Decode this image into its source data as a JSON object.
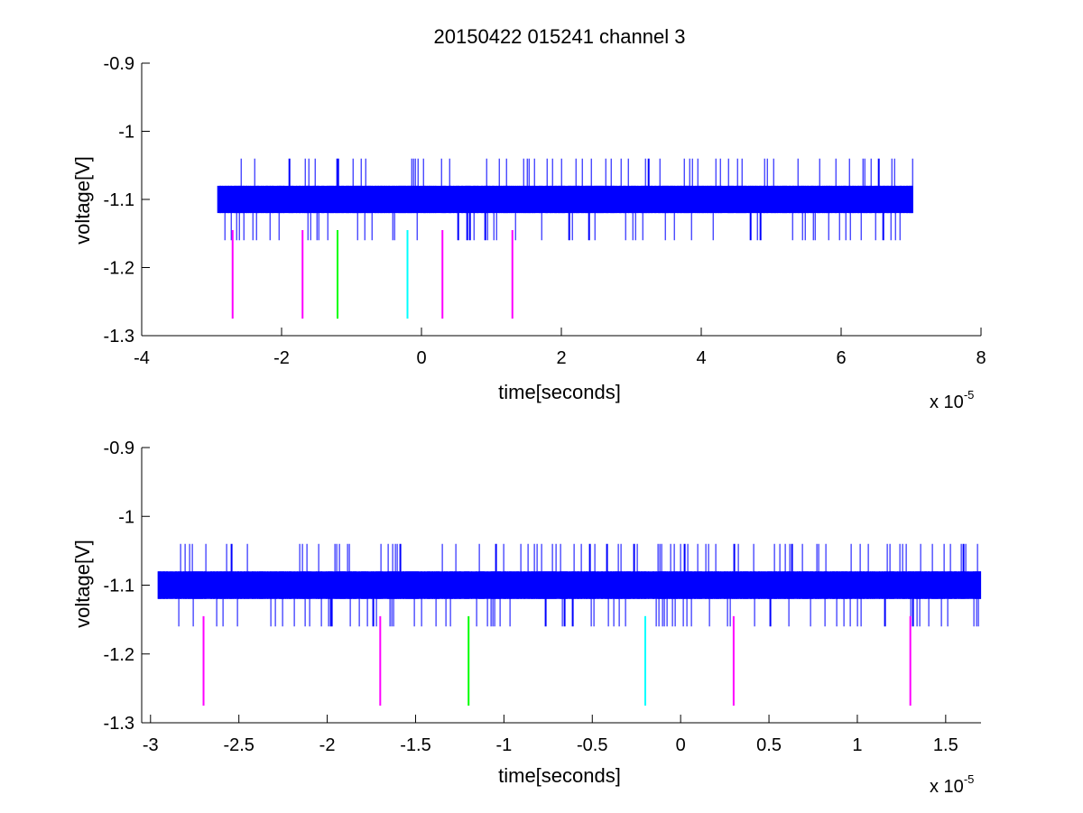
{
  "figure_title": "20150422 015241 channel 3",
  "colors": {
    "signal": "#0000ff",
    "magenta": "#ff00ff",
    "green": "#00ff00",
    "cyan": "#00ffff",
    "axis": "#000000",
    "background": "#ffffff"
  },
  "chart_data": [
    {
      "type": "line",
      "title": "20150422 015241 channel 3",
      "xlabel": "time[seconds]",
      "ylabel": "voltage[V]",
      "x_scale_label": "x 10",
      "x_scale_exponent": "-5",
      "xlim": [
        -4,
        8
      ],
      "ylim": [
        -1.3,
        -0.9
      ],
      "x_ticks": [
        -4,
        -2,
        0,
        2,
        4,
        6,
        8
      ],
      "x_tick_labels": [
        "-4",
        "-2",
        "0",
        "2",
        "4",
        "6",
        "8"
      ],
      "y_ticks": [
        -0.9,
        -1.0,
        -1.1,
        -1.2,
        -1.3
      ],
      "y_tick_labels": [
        "-0.9",
        "-1",
        "-1.1",
        "-1.2",
        "-1.3"
      ],
      "grid": false,
      "signal": {
        "x_range": [
          -2.92,
          7.03
        ],
        "band_low": -1.12,
        "band_high": -1.08,
        "spike_high": -1.04,
        "spike_low": -1.16,
        "color": "#0000ff"
      },
      "markers": [
        {
          "x": -2.7,
          "y_top": -1.145,
          "y_bottom": -1.275,
          "color": "#ff00ff"
        },
        {
          "x": -1.7,
          "y_top": -1.145,
          "y_bottom": -1.275,
          "color": "#ff00ff"
        },
        {
          "x": -1.2,
          "y_top": -1.145,
          "y_bottom": -1.275,
          "color": "#00ff00"
        },
        {
          "x": -0.2,
          "y_top": -1.145,
          "y_bottom": -1.275,
          "color": "#00ffff"
        },
        {
          "x": 0.3,
          "y_top": -1.145,
          "y_bottom": -1.275,
          "color": "#ff00ff"
        },
        {
          "x": 1.3,
          "y_top": -1.145,
          "y_bottom": -1.275,
          "color": "#ff00ff"
        }
      ]
    },
    {
      "type": "line",
      "title": "",
      "xlabel": "time[seconds]",
      "ylabel": "voltage[V]",
      "x_scale_label": "x 10",
      "x_scale_exponent": "-5",
      "xlim": [
        -3.05,
        1.7
      ],
      "ylim": [
        -1.3,
        -0.9
      ],
      "x_ticks": [
        -3,
        -2.5,
        -2,
        -1.5,
        -1,
        -0.5,
        0,
        0.5,
        1,
        1.5
      ],
      "x_tick_labels": [
        "-3",
        "-2.5",
        "-2",
        "-1.5",
        "-1",
        "-0.5",
        "0",
        "0.5",
        "1",
        "1.5"
      ],
      "y_ticks": [
        -0.9,
        -1.0,
        -1.1,
        -1.2,
        -1.3
      ],
      "y_tick_labels": [
        "-0.9",
        "-1",
        "-1.1",
        "-1.2",
        "-1.3"
      ],
      "grid": false,
      "signal": {
        "x_range": [
          -2.96,
          1.7
        ],
        "band_low": -1.12,
        "band_high": -1.08,
        "spike_high": -1.04,
        "spike_low": -1.16,
        "color": "#0000ff"
      },
      "markers": [
        {
          "x": -2.7,
          "y_top": -1.145,
          "y_bottom": -1.275,
          "color": "#ff00ff"
        },
        {
          "x": -1.7,
          "y_top": -1.145,
          "y_bottom": -1.275,
          "color": "#ff00ff"
        },
        {
          "x": -1.2,
          "y_top": -1.145,
          "y_bottom": -1.275,
          "color": "#00ff00"
        },
        {
          "x": -0.2,
          "y_top": -1.145,
          "y_bottom": -1.275,
          "color": "#00ffff"
        },
        {
          "x": 0.3,
          "y_top": -1.145,
          "y_bottom": -1.275,
          "color": "#ff00ff"
        },
        {
          "x": 1.3,
          "y_top": -1.145,
          "y_bottom": -1.275,
          "color": "#ff00ff"
        }
      ]
    }
  ]
}
